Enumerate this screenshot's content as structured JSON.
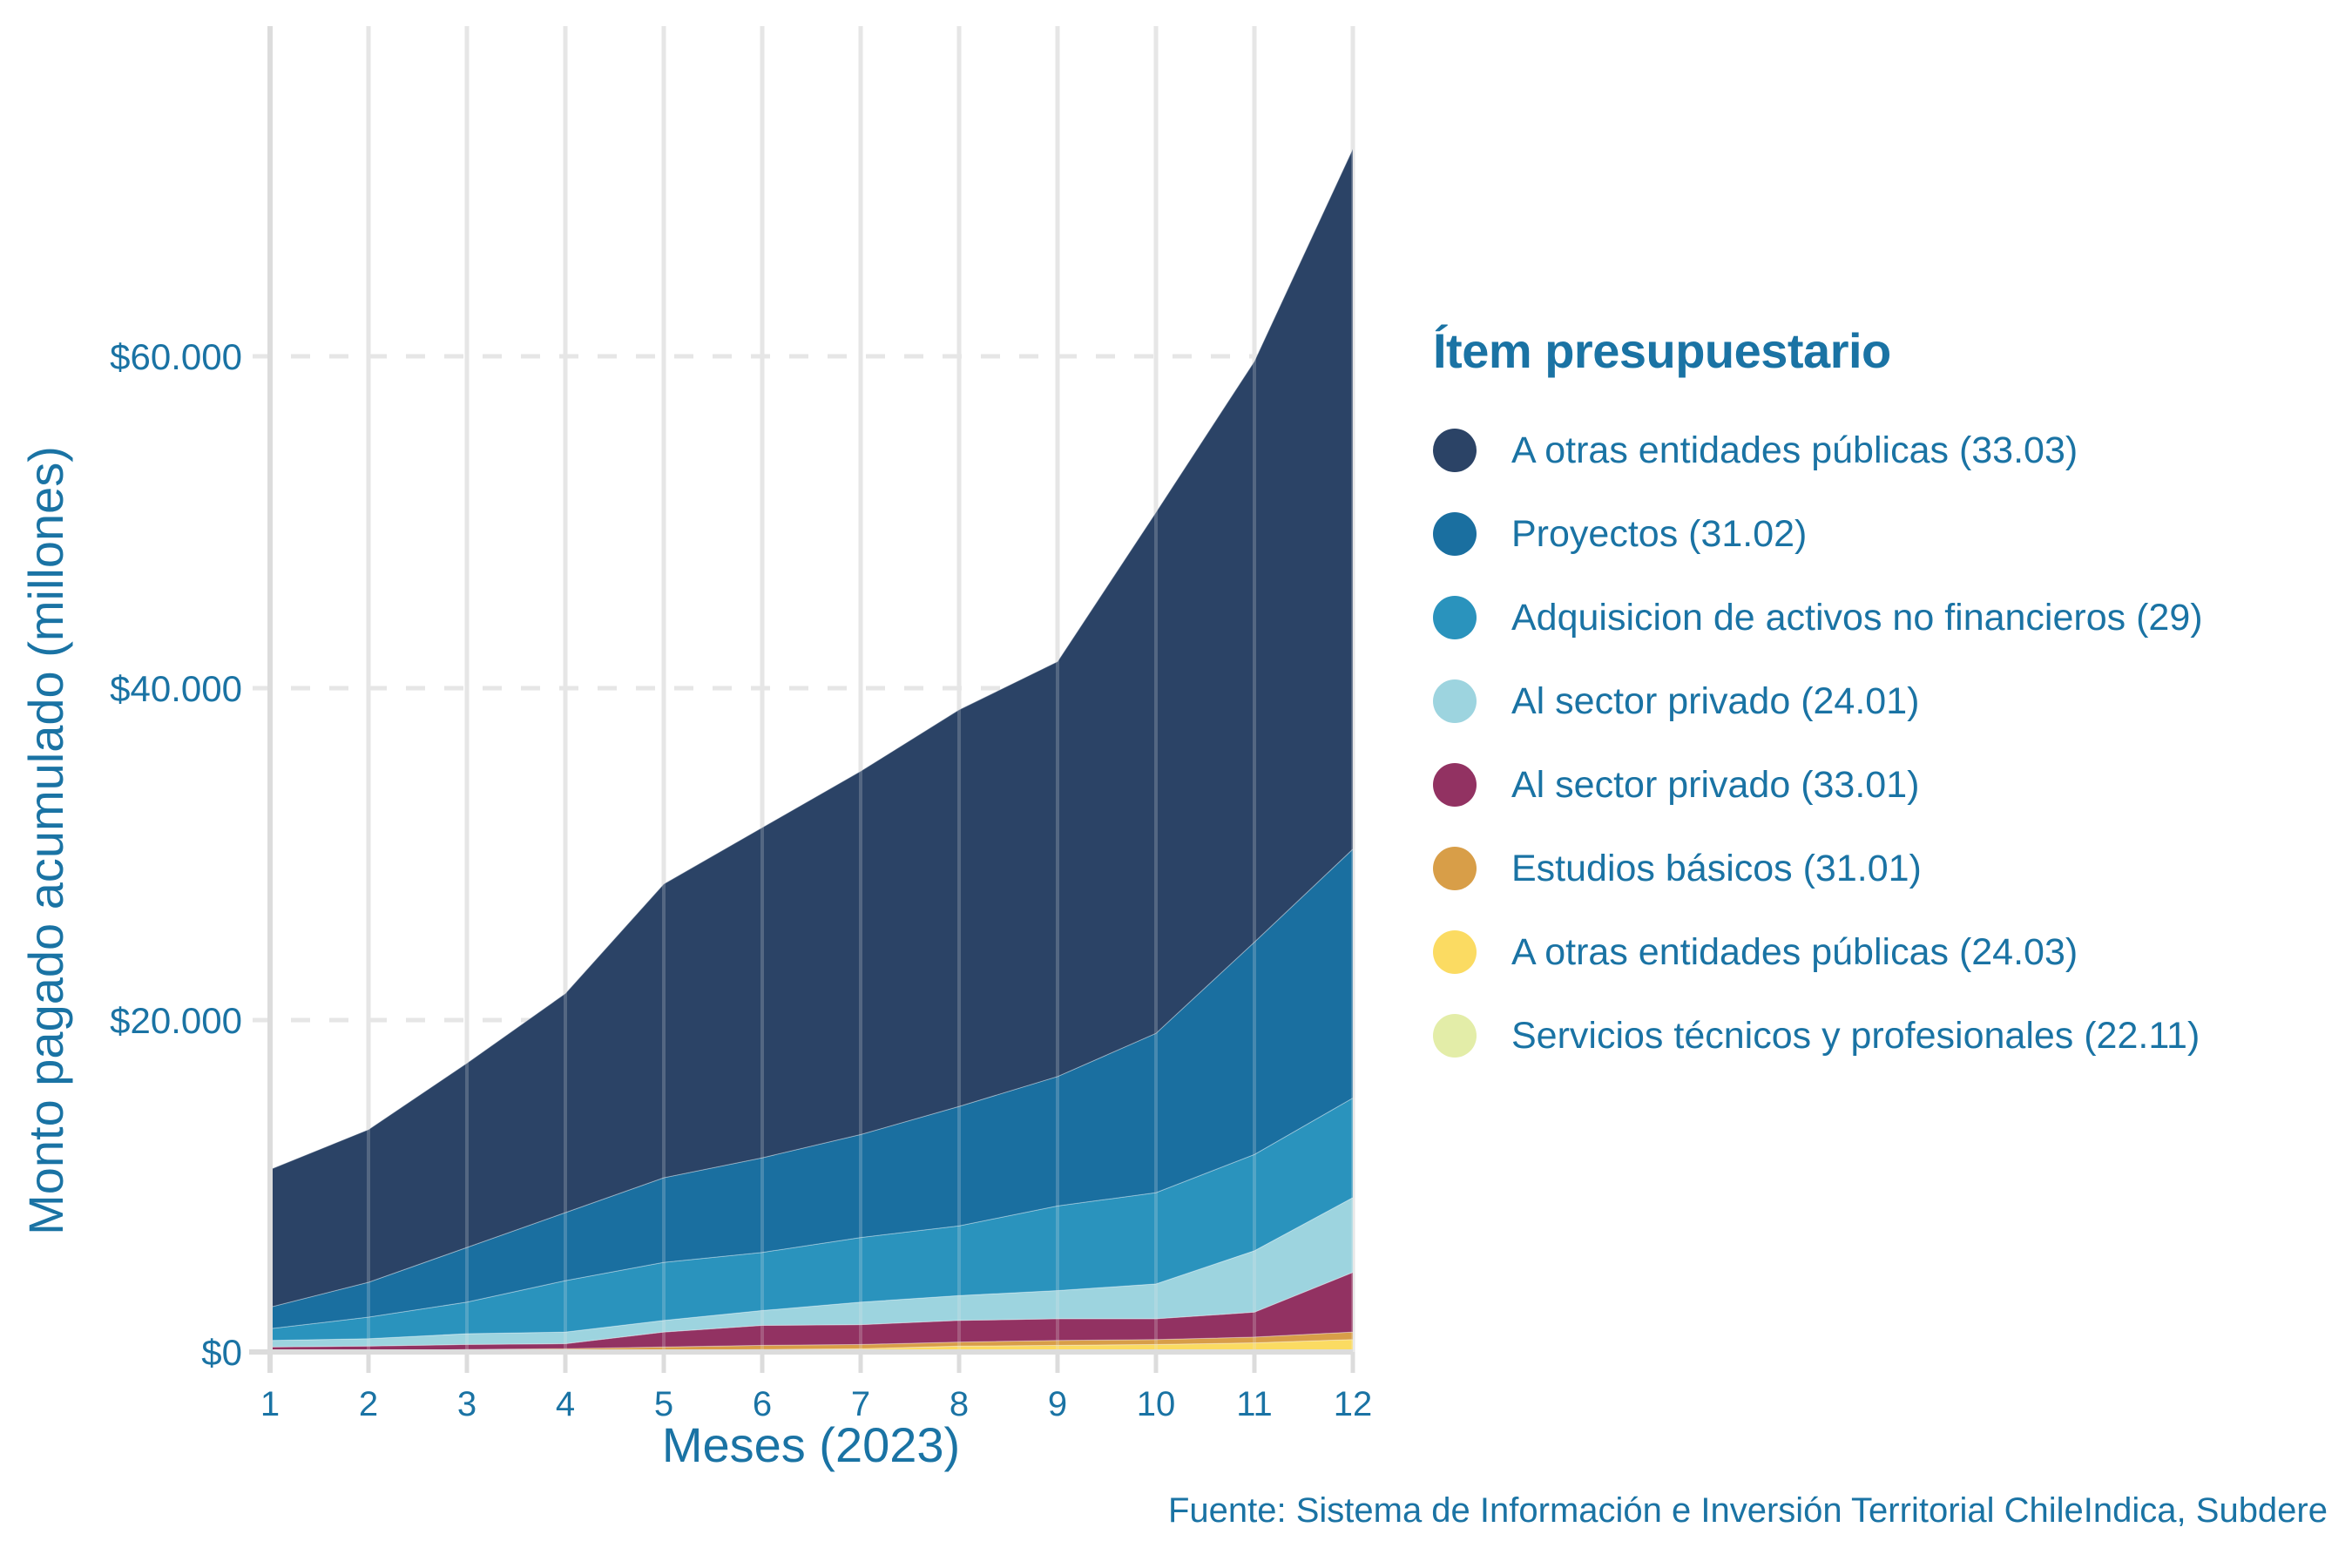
{
  "chart_data": {
    "type": "area",
    "stacked": true,
    "title": "",
    "xlabel": "Meses (2023)",
    "ylabel": "Monto pagado acumulado (millones)",
    "x": [
      1,
      2,
      3,
      4,
      5,
      6,
      7,
      8,
      9,
      10,
      11,
      12
    ],
    "x_tick_labels": [
      "1",
      "2",
      "3",
      "4",
      "5",
      "6",
      "7",
      "8",
      "9",
      "10",
      "11",
      "12"
    ],
    "y_ticks": [
      0,
      20000,
      40000,
      60000
    ],
    "y_tick_labels": [
      "$0",
      "$20.000",
      "$40.000",
      "$60.000"
    ],
    "ylim": [
      0,
      80000
    ],
    "grid": true,
    "legend_title": "Ítem presupuestario",
    "legend_position": "right",
    "caption": "Fuente: Sistema de Información e Inversión Territorial ChileIndica, Subdere",
    "series": [
      {
        "name": "A otras entidades públicas (33.03)",
        "color": "#2b4366",
        "values": [
          8300,
          9200,
          11100,
          13200,
          17700,
          19900,
          21900,
          23900,
          25000,
          31400,
          35000,
          42200
        ]
      },
      {
        "name": "Proyectos (31.02)",
        "color": "#1a6fa0",
        "values": [
          1300,
          2100,
          3300,
          4100,
          5100,
          5700,
          6200,
          7200,
          7800,
          9600,
          12800,
          15000
        ]
      },
      {
        "name": "Adquisicion de activos no financieros (29)",
        "color": "#2a93bd",
        "values": [
          700,
          1300,
          1900,
          3100,
          3500,
          3500,
          3900,
          4200,
          5100,
          5500,
          5800,
          6000
        ]
      },
      {
        "name": "Al sector privado (24.01)",
        "color": "#9dd4df",
        "values": [
          400,
          450,
          650,
          700,
          700,
          900,
          1350,
          1500,
          1700,
          2100,
          3700,
          4500
        ]
      },
      {
        "name": "Al sector privado (33.01)",
        "color": "#923262",
        "values": [
          250,
          300,
          300,
          300,
          900,
          1200,
          1200,
          1300,
          1300,
          1250,
          1500,
          3600
        ]
      },
      {
        "name": "Estudios básicos (31.01)",
        "color": "#d89e48",
        "values": [
          30,
          30,
          100,
          100,
          200,
          250,
          250,
          250,
          300,
          300,
          350,
          450
        ]
      },
      {
        "name": "A otras entidades públicas (24.03)",
        "color": "#fbdb62",
        "values": [
          10,
          10,
          40,
          90,
          90,
          140,
          190,
          340,
          390,
          440,
          540,
          740
        ]
      },
      {
        "name": "Servicios técnicos y profesionales (22.11)",
        "color": "#e3eda8",
        "values": [
          10,
          10,
          10,
          10,
          10,
          10,
          10,
          10,
          10,
          10,
          10,
          10
        ]
      }
    ]
  },
  "colors": {
    "text": "#1a73a4",
    "grid": "#e6e6e6",
    "axis": "#dcdcdc"
  }
}
